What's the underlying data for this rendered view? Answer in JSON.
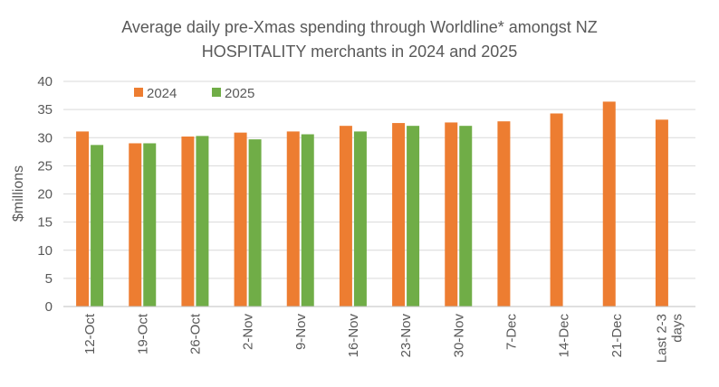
{
  "chart_data": {
    "type": "bar",
    "title_lines": [
      "Average daily pre-Xmas spending through Worldline* amongst NZ",
      "HOSPITALITY merchants in 2024 and 2025"
    ],
    "ylabel": "$millions",
    "xlabel": "",
    "ylim": [
      0,
      40
    ],
    "yticks": [
      0,
      5,
      10,
      15,
      20,
      25,
      30,
      35,
      40
    ],
    "grid": true,
    "legend_position": "top-left",
    "categories": [
      [
        "12-Oct"
      ],
      [
        "19-Oct"
      ],
      [
        "26-Oct"
      ],
      [
        "2-Nov"
      ],
      [
        "9-Nov"
      ],
      [
        "16-Nov"
      ],
      [
        "23-Nov"
      ],
      [
        "30-Nov"
      ],
      [
        "7-Dec"
      ],
      [
        "14-Dec"
      ],
      [
        "21-Dec"
      ],
      [
        "Last 2-3",
        "days"
      ]
    ],
    "series": [
      {
        "name": "2024",
        "color": "#ED7D31",
        "values": [
          31.1,
          29.0,
          30.2,
          30.9,
          31.1,
          32.1,
          32.6,
          32.7,
          32.9,
          34.3,
          36.4,
          33.2
        ]
      },
      {
        "name": "2025",
        "color": "#70AD47",
        "values": [
          28.7,
          29.0,
          30.3,
          29.7,
          30.6,
          31.1,
          32.1,
          32.1,
          null,
          null,
          null,
          null
        ]
      }
    ]
  }
}
